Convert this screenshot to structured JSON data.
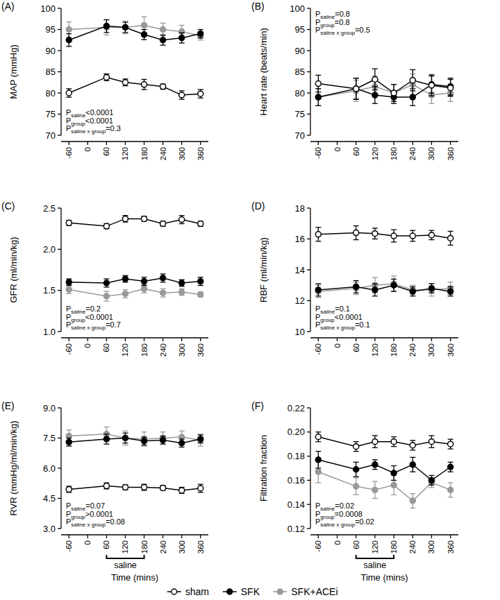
{
  "chart_data": [
    {
      "type": "line",
      "title": "(A)",
      "y_label": "MAP (mmHg)",
      "x": [
        -60,
        60,
        120,
        180,
        240,
        300,
        360
      ],
      "xlim": [
        -85,
        385
      ],
      "xticks": [
        -60,
        0,
        60,
        120,
        180,
        240,
        300,
        360
      ],
      "ylim": [
        70,
        100
      ],
      "yticks": [
        70,
        75,
        80,
        85,
        90,
        95,
        100
      ],
      "series": [
        {
          "color": "#000000",
          "marker": "open-circle",
          "line_style": "solid",
          "values": [
            80,
            83.7,
            82.5,
            82,
            81.5,
            79.5,
            79.8
          ],
          "errors": [
            1,
            0.8,
            0.8,
            1.2,
            0.6,
            1,
            1
          ]
        },
        {
          "color": "#000000",
          "marker": "circle",
          "line_style": "solid",
          "values": [
            92.5,
            95.8,
            95.5,
            93.8,
            92.5,
            93,
            94
          ],
          "errors": [
            1.5,
            1.5,
            1.2,
            1.2,
            1.2,
            1.2,
            1
          ]
        },
        {
          "color": "#999999",
          "marker": "circle",
          "line_style": "solid",
          "values": [
            95,
            95.5,
            95.5,
            96,
            95,
            94.5,
            93.5
          ],
          "errors": [
            1.8,
            1.8,
            1.5,
            2,
            1.5,
            1.5,
            1
          ]
        }
      ],
      "annotations": [
        {
          "label": "P",
          "subscript": "saline",
          "value": "<0.0001"
        },
        {
          "label": "P",
          "subscript": "group",
          "value": "<0.0001"
        },
        {
          "label": "P",
          "subscript": "saline x group",
          "value": "=0.3"
        }
      ]
    },
    {
      "type": "line",
      "title": "(B)",
      "y_label": "Heart rate (beats/min)",
      "x": [
        -60,
        60,
        120,
        180,
        240,
        300,
        360
      ],
      "xlim": [
        -85,
        385
      ],
      "xticks": [
        -60,
        0,
        60,
        120,
        180,
        240,
        300,
        360
      ],
      "ylim": [
        70,
        100
      ],
      "yticks": [
        70,
        75,
        80,
        85,
        90,
        95,
        100
      ],
      "series": [
        {
          "color": "#000000",
          "marker": "open-circle",
          "line_style": "solid",
          "values": [
            82.2,
            81,
            83.2,
            80,
            83,
            81.8,
            81.2
          ],
          "errors": [
            2,
            2.5,
            2.5,
            2,
            2.5,
            2.5,
            2
          ]
        },
        {
          "color": "#000000",
          "marker": "circle",
          "line_style": "solid",
          "values": [
            79,
            81,
            79.5,
            79,
            79,
            82,
            81.5
          ],
          "errors": [
            2,
            2.5,
            2,
            1.5,
            2,
            2,
            2
          ]
        },
        {
          "color": "#999999",
          "marker": "circle",
          "line_style": "solid",
          "values": [
            79,
            80.5,
            81.5,
            80,
            82,
            79.5,
            80
          ],
          "errors": [
            2,
            2.5,
            2.5,
            2,
            2.5,
            2,
            2
          ]
        }
      ],
      "annotations": [
        {
          "label": "P",
          "subscript": "saline",
          "value": "=0.8"
        },
        {
          "label": "P",
          "subscript": "group",
          "value": "=0.8"
        },
        {
          "label": "P",
          "subscript": "saline x group",
          "value": "=0.5"
        }
      ]
    },
    {
      "type": "line",
      "title": "(C)",
      "y_label": "GFR (ml/min/kg)",
      "x": [
        -60,
        60,
        120,
        180,
        240,
        300,
        360
      ],
      "xlim": [
        -85,
        385
      ],
      "xticks": [
        -60,
        0,
        60,
        120,
        180,
        240,
        300,
        360
      ],
      "ylim": [
        1.0,
        2.5
      ],
      "yticks": [
        {
          "value": 1,
          "label": "1.0"
        },
        1.5,
        {
          "value": 2,
          "label": "2.0"
        },
        2.5
      ],
      "series": [
        {
          "color": "#000000",
          "marker": "open-circle",
          "line_style": "solid",
          "values": [
            2.32,
            2.28,
            2.37,
            2.37,
            2.31,
            2.36,
            2.31
          ],
          "errors": [
            0.03,
            0.03,
            0.04,
            0.03,
            0.03,
            0.05,
            0.03
          ]
        },
        {
          "color": "#000000",
          "marker": "circle",
          "line_style": "solid",
          "values": [
            1.6,
            1.59,
            1.64,
            1.61,
            1.65,
            1.59,
            1.61
          ],
          "errors": [
            0.04,
            0.05,
            0.04,
            0.05,
            0.05,
            0.04,
            0.05
          ]
        },
        {
          "color": "#999999",
          "marker": "circle",
          "line_style": "solid",
          "values": [
            1.51,
            1.43,
            1.46,
            1.52,
            1.47,
            1.48,
            1.45
          ],
          "errors": [
            0.05,
            0.06,
            0.05,
            0.05,
            0.05,
            0.04,
            0.03
          ]
        }
      ],
      "annotations": [
        {
          "label": "P",
          "subscript": "saline",
          "value": "=0.2"
        },
        {
          "label": "P",
          "subscript": "group",
          "value": "<0.0001"
        },
        {
          "label": "P",
          "subscript": "saline x group",
          "value": "=0.7"
        }
      ]
    },
    {
      "type": "line",
      "title": "(D)",
      "y_label": "RBF (ml/min/kg)",
      "x": [
        -60,
        60,
        120,
        180,
        240,
        300,
        360
      ],
      "xlim": [
        -85,
        385
      ],
      "xticks": [
        -60,
        0,
        60,
        120,
        180,
        240,
        300,
        360
      ],
      "ylim": [
        10,
        18
      ],
      "yticks": [
        10,
        12,
        14,
        16,
        18
      ],
      "series": [
        {
          "color": "#000000",
          "marker": "open-circle",
          "line_style": "solid",
          "values": [
            16.3,
            16.4,
            16.35,
            16.2,
            16.2,
            16.25,
            16.05
          ],
          "errors": [
            0.45,
            0.45,
            0.35,
            0.4,
            0.35,
            0.3,
            0.45
          ]
        },
        {
          "color": "#000000",
          "marker": "circle",
          "line_style": "solid",
          "values": [
            12.7,
            12.9,
            12.7,
            13.0,
            12.6,
            12.8,
            12.6
          ],
          "errors": [
            0.4,
            0.4,
            0.4,
            0.4,
            0.3,
            0.3,
            0.3
          ]
        },
        {
          "color": "#999999",
          "marker": "circle",
          "line_style": "solid",
          "values": [
            12.6,
            12.8,
            13.0,
            13.1,
            12.7,
            12.7,
            12.8
          ],
          "errors": [
            0.4,
            0.4,
            0.5,
            0.5,
            0.3,
            0.4,
            0.4
          ]
        }
      ],
      "annotations": [
        {
          "label": "P",
          "subscript": "saline",
          "value": "=0.1"
        },
        {
          "label": "P",
          "subscript": "group",
          "value": "<0.0001"
        },
        {
          "label": "P",
          "subscript": "saline x group",
          "value": "=0.1"
        }
      ]
    },
    {
      "type": "line",
      "title": "(E)",
      "y_label": "RVR (mmHg/ml/min/kg)",
      "x_label": "Time (mins)",
      "x": [
        -60,
        60,
        120,
        180,
        240,
        300,
        360
      ],
      "xlim": [
        -85,
        385
      ],
      "xticks": [
        -60,
        0,
        60,
        120,
        180,
        240,
        300,
        360
      ],
      "ylim": [
        3.0,
        9.0
      ],
      "yticks": [
        {
          "value": 3,
          "label": "3.0"
        },
        4.5,
        {
          "value": 6,
          "label": "6.0"
        },
        7.5,
        {
          "value": 9,
          "label": "9.0"
        }
      ],
      "series": [
        {
          "color": "#000000",
          "marker": "open-circle",
          "line_style": "solid",
          "values": [
            4.95,
            5.12,
            5.05,
            5.05,
            5.02,
            4.9,
            5.0
          ],
          "errors": [
            0.15,
            0.15,
            0.12,
            0.15,
            0.12,
            0.15,
            0.2
          ]
        },
        {
          "color": "#000000",
          "marker": "circle",
          "line_style": "solid",
          "values": [
            7.3,
            7.45,
            7.5,
            7.35,
            7.4,
            7.25,
            7.45
          ],
          "errors": [
            0.2,
            0.25,
            0.25,
            0.2,
            0.2,
            0.2,
            0.2
          ]
        },
        {
          "color": "#999999",
          "marker": "circle",
          "line_style": "solid",
          "values": [
            7.6,
            7.7,
            7.5,
            7.45,
            7.5,
            7.55,
            7.4
          ],
          "errors": [
            0.3,
            0.35,
            0.35,
            0.35,
            0.3,
            0.3,
            0.3
          ]
        }
      ],
      "annotations": [
        {
          "label": "P",
          "subscript": "saline",
          "value": "=0.07"
        },
        {
          "label": "P",
          "subscript": "group",
          "value": ">0.0001"
        },
        {
          "label": "P",
          "subscript": "saline x group",
          "value": "=0.08"
        }
      ],
      "period": {
        "text": "saline",
        "from": 60,
        "to": 180
      }
    },
    {
      "type": "line",
      "title": "(F)",
      "y_label": "Filtration fraction",
      "x_label": "Time (mins)",
      "x": [
        -60,
        60,
        120,
        180,
        240,
        300,
        360
      ],
      "xlim": [
        -85,
        385
      ],
      "xticks": [
        -60,
        0,
        60,
        120,
        180,
        240,
        300,
        360
      ],
      "ylim": [
        0.12,
        0.22
      ],
      "yticks": [
        0.12,
        0.14,
        0.16,
        0.18,
        {
          "value": 0.2,
          "label": "0.20"
        },
        0.22
      ],
      "legend": "bottom",
      "series": [
        {
          "name": "sham",
          "color": "#000000",
          "marker": "open-circle",
          "line_style": "solid",
          "values": [
            0.196,
            0.188,
            0.192,
            0.192,
            0.189,
            0.192,
            0.19
          ],
          "errors": [
            0.004,
            0.004,
            0.005,
            0.004,
            0.004,
            0.005,
            0.004
          ]
        },
        {
          "name": "SFK",
          "color": "#000000",
          "marker": "circle",
          "line_style": "solid",
          "values": [
            0.177,
            0.169,
            0.173,
            0.166,
            0.173,
            0.16,
            0.171
          ],
          "errors": [
            0.007,
            0.006,
            0.004,
            0.006,
            0.006,
            0.004,
            0.004
          ]
        },
        {
          "name": "SFK+ACEi",
          "color": "#999999",
          "marker": "circle",
          "line_style": "solid",
          "values": [
            0.167,
            0.155,
            0.152,
            0.156,
            0.143,
            0.158,
            0.152
          ],
          "errors": [
            0.009,
            0.007,
            0.007,
            0.008,
            0.006,
            0.004,
            0.006
          ]
        }
      ],
      "annotations": [
        {
          "label": "P",
          "subscript": "saline",
          "value": "=0.02"
        },
        {
          "label": "P",
          "subscript": "group",
          "value": "=0.0008"
        },
        {
          "label": "P",
          "subscript": "saline x group",
          "value": "=0.02"
        }
      ],
      "period": {
        "text": "saline",
        "from": 60,
        "to": 180
      }
    }
  ]
}
